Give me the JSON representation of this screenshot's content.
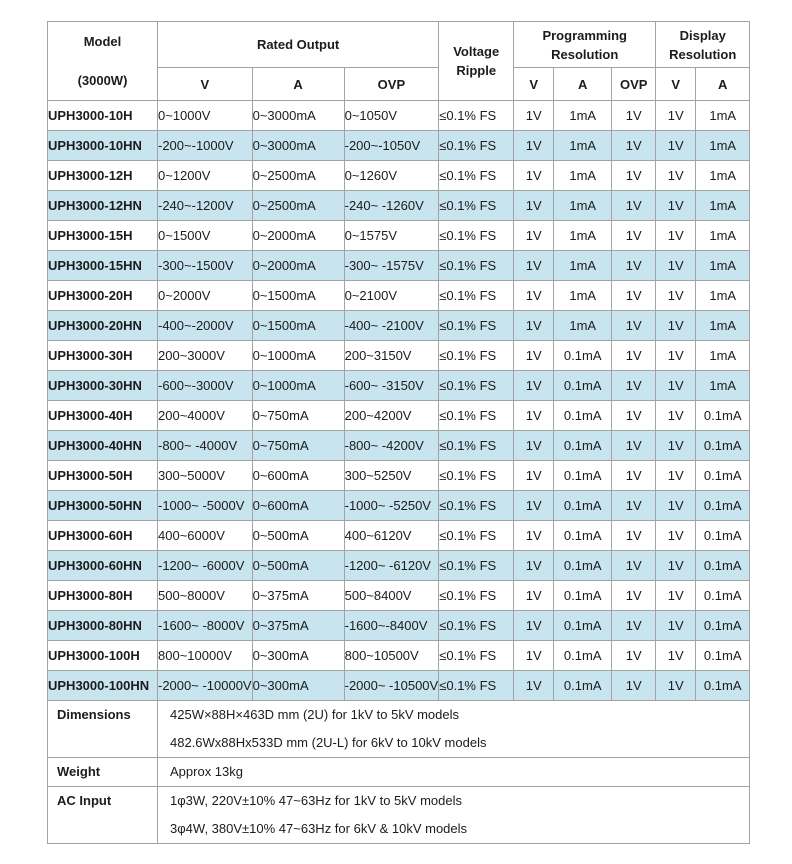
{
  "colors": {
    "row_alt_blue": "#c8e4ee",
    "border_gray": "#a3a3a3",
    "background": "#ffffff",
    "text": "#1c1c1c"
  },
  "table": {
    "header": {
      "model_line1": "Model",
      "model_line2": "(3000W)",
      "rated_output": "Rated Output",
      "voltage_ripple_line1": "Voltage",
      "voltage_ripple_line2": "Ripple",
      "programming_line1": "Programming",
      "programming_line2": "Resolution",
      "display_line1": "Display",
      "display_line2": "Resolution",
      "sub_v": "V",
      "sub_a": "A",
      "sub_ovp": "OVP"
    },
    "rows": [
      {
        "model": "UPH3000-10H",
        "v": "0~1000V",
        "a": "0~3000mA",
        "ovp": "0~1050V",
        "ripple": "≤0.1% FS",
        "pv": "1V",
        "pa": "1mA",
        "povp": "1V",
        "dv": "1V",
        "da": "1mA"
      },
      {
        "model": "UPH3000-10HN",
        "v": "-200~-1000V",
        "a": "0~3000mA",
        "ovp": "-200~-1050V",
        "ripple": "≤0.1% FS",
        "pv": "1V",
        "pa": "1mA",
        "povp": "1V",
        "dv": "1V",
        "da": "1mA"
      },
      {
        "model": "UPH3000-12H",
        "v": "0~1200V",
        "a": "0~2500mA",
        "ovp": "0~1260V",
        "ripple": "≤0.1% FS",
        "pv": "1V",
        "pa": "1mA",
        "povp": "1V",
        "dv": "1V",
        "da": "1mA"
      },
      {
        "model": "UPH3000-12HN",
        "v": "-240~-1200V",
        "a": "0~2500mA",
        "ovp": "-240~ -1260V",
        "ripple": "≤0.1% FS",
        "pv": "1V",
        "pa": "1mA",
        "povp": "1V",
        "dv": "1V",
        "da": "1mA"
      },
      {
        "model": "UPH3000-15H",
        "v": "0~1500V",
        "a": "0~2000mA",
        "ovp": "0~1575V",
        "ripple": "≤0.1% FS",
        "pv": "1V",
        "pa": "1mA",
        "povp": "1V",
        "dv": "1V",
        "da": "1mA"
      },
      {
        "model": "UPH3000-15HN",
        "v": "-300~-1500V",
        "a": "0~2000mA",
        "ovp": "-300~ -1575V",
        "ripple": "≤0.1% FS",
        "pv": "1V",
        "pa": "1mA",
        "povp": "1V",
        "dv": "1V",
        "da": "1mA"
      },
      {
        "model": "UPH3000-20H",
        "v": "0~2000V",
        "a": "0~1500mA",
        "ovp": "0~2100V",
        "ripple": "≤0.1% FS",
        "pv": "1V",
        "pa": "1mA",
        "povp": "1V",
        "dv": "1V",
        "da": "1mA"
      },
      {
        "model": "UPH3000-20HN",
        "v": "-400~-2000V",
        "a": "0~1500mA",
        "ovp": "-400~ -2100V",
        "ripple": "≤0.1% FS",
        "pv": "1V",
        "pa": "1mA",
        "povp": "1V",
        "dv": "1V",
        "da": "1mA"
      },
      {
        "model": "UPH3000-30H",
        "v": "200~3000V",
        "a": "0~1000mA",
        "ovp": "200~3150V",
        "ripple": "≤0.1% FS",
        "pv": "1V",
        "pa": "0.1mA",
        "povp": "1V",
        "dv": "1V",
        "da": "1mA"
      },
      {
        "model": "UPH3000-30HN",
        "v": "-600~-3000V",
        "a": "0~1000mA",
        "ovp": "-600~ -3150V",
        "ripple": "≤0.1% FS",
        "pv": "1V",
        "pa": "0.1mA",
        "povp": "1V",
        "dv": "1V",
        "da": "1mA"
      },
      {
        "model": "UPH3000-40H",
        "v": "200~4000V",
        "a": "0~750mA",
        "ovp": "200~4200V",
        "ripple": "≤0.1% FS",
        "pv": "1V",
        "pa": "0.1mA",
        "povp": "1V",
        "dv": "1V",
        "da": "0.1mA"
      },
      {
        "model": "UPH3000-40HN",
        "v": "-800~ -4000V",
        "a": "0~750mA",
        "ovp": "-800~ -4200V",
        "ripple": "≤0.1% FS",
        "pv": "1V",
        "pa": "0.1mA",
        "povp": "1V",
        "dv": "1V",
        "da": "0.1mA"
      },
      {
        "model": "UPH3000-50H",
        "v": "300~5000V",
        "a": "0~600mA",
        "ovp": "300~5250V",
        "ripple": "≤0.1% FS",
        "pv": "1V",
        "pa": "0.1mA",
        "povp": "1V",
        "dv": "1V",
        "da": "0.1mA"
      },
      {
        "model": "UPH3000-50HN",
        "v": "-1000~ -5000V",
        "a": "0~600mA",
        "ovp": "-1000~ -5250V",
        "ripple": "≤0.1% FS",
        "pv": "1V",
        "pa": "0.1mA",
        "povp": "1V",
        "dv": "1V",
        "da": "0.1mA"
      },
      {
        "model": "UPH3000-60H",
        "v": "400~6000V",
        "a": "0~500mA",
        "ovp": "400~6120V",
        "ripple": "≤0.1% FS",
        "pv": "1V",
        "pa": "0.1mA",
        "povp": "1V",
        "dv": "1V",
        "da": "0.1mA"
      },
      {
        "model": "UPH3000-60HN",
        "v": "-1200~ -6000V",
        "a": "0~500mA",
        "ovp": "-1200~ -6120V",
        "ripple": "≤0.1% FS",
        "pv": "1V",
        "pa": "0.1mA",
        "povp": "1V",
        "dv": "1V",
        "da": "0.1mA"
      },
      {
        "model": "UPH3000-80H",
        "v": "500~8000V",
        "a": "0~375mA",
        "ovp": "500~8400V",
        "ripple": "≤0.1% FS",
        "pv": "1V",
        "pa": "0.1mA",
        "povp": "1V",
        "dv": "1V",
        "da": "0.1mA"
      },
      {
        "model": "UPH3000-80HN",
        "v": "-1600~ -8000V",
        "a": "0~375mA",
        "ovp": "-1600~-8400V",
        "ripple": "≤0.1% FS",
        "pv": "1V",
        "pa": "0.1mA",
        "povp": "1V",
        "dv": "1V",
        "da": "0.1mA"
      },
      {
        "model": "UPH3000-100H",
        "v": "800~10000V",
        "a": "0~300mA",
        "ovp": "800~10500V",
        "ripple": "≤0.1% FS",
        "pv": "1V",
        "pa": "0.1mA",
        "povp": "1V",
        "dv": "1V",
        "da": "0.1mA"
      },
      {
        "model": "UPH3000-100HN",
        "v": "-2000~ -10000V",
        "a": "0~300mA",
        "ovp": "-2000~ -10500V",
        "ripple": "≤0.1% FS",
        "pv": "1V",
        "pa": "0.1mA",
        "povp": "1V",
        "dv": "1V",
        "da": "0.1mA"
      }
    ],
    "footer": [
      {
        "label": "Dimensions",
        "lines": [
          "425W×88H×463D mm (2U) for 1kV to 5kV models",
          "482.6Wx88Hx533D mm (2U-L) for 6kV to 10kV models"
        ]
      },
      {
        "label": "Weight",
        "lines": [
          "Approx 13kg"
        ]
      },
      {
        "label": "AC Input",
        "lines": [
          "1φ3W, 220V±10% 47~63Hz for 1kV to 5kV models",
          "3φ4W, 380V±10% 47~63Hz for 6kV & 10kV models"
        ]
      }
    ]
  }
}
